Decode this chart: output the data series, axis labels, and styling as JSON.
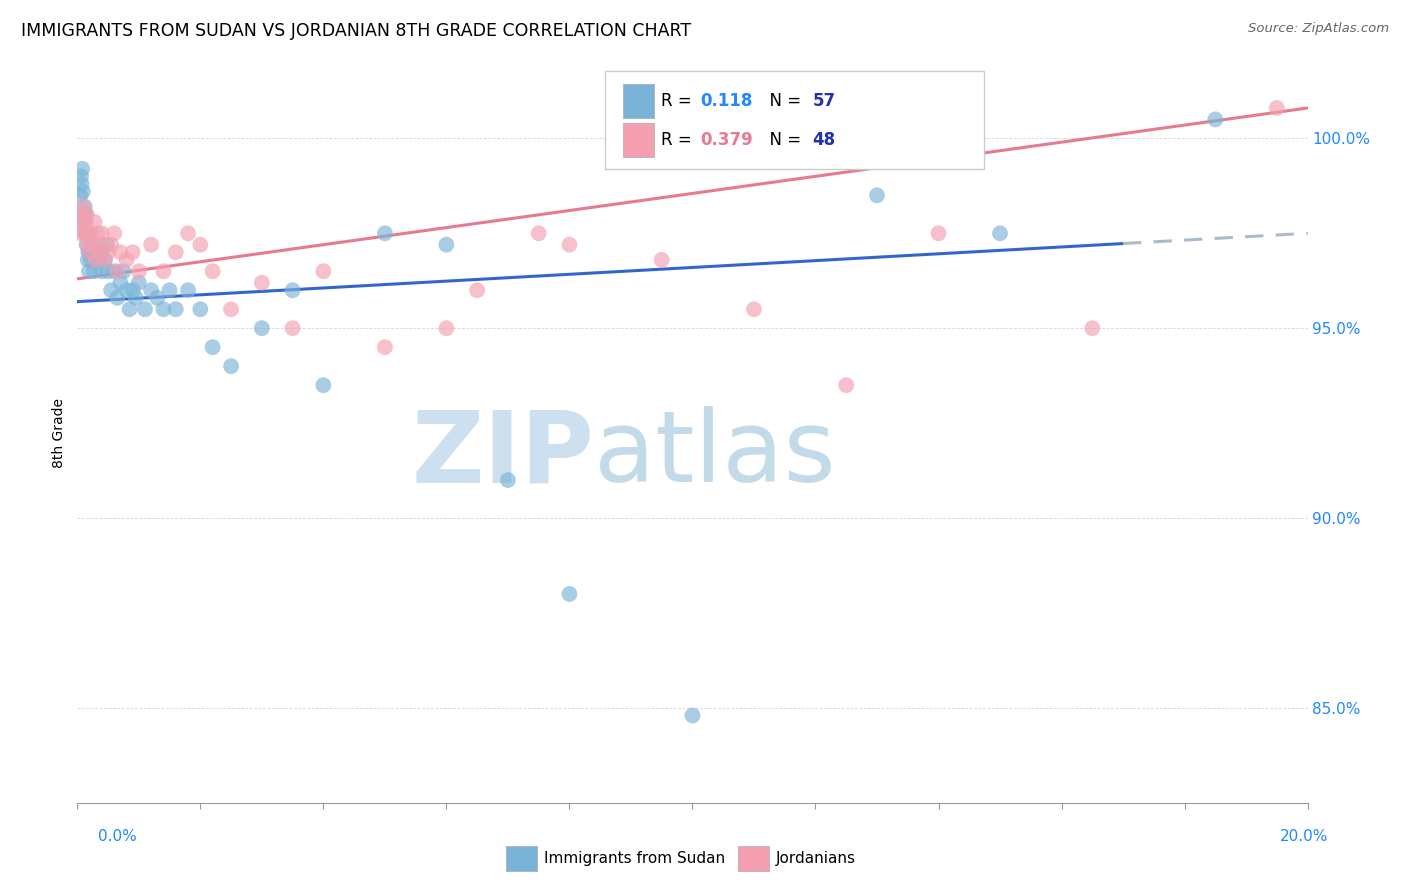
{
  "title": "IMMIGRANTS FROM SUDAN VS JORDANIAN 8TH GRADE CORRELATION CHART",
  "source": "Source: ZipAtlas.com",
  "ylabel": "8th Grade",
  "y_ticks": [
    85.0,
    90.0,
    95.0,
    100.0
  ],
  "y_tick_labels": [
    "85.0%",
    "90.0%",
    "95.0%",
    "100.0%"
  ],
  "xlim": [
    0.0,
    20.0
  ],
  "ylim": [
    82.5,
    102.0
  ],
  "series1_label": "Immigrants from Sudan",
  "series1_color": "#7ab3d8",
  "series1_edge": "#5090bb",
  "series1_R": "0.118",
  "series1_N": "57",
  "series1_line_color": "#3366cc",
  "series1_dash_color": "#aabbcc",
  "series2_label": "Jordanians",
  "series2_color": "#f4a0b0",
  "series2_edge": "#d07090",
  "series2_R": "0.379",
  "series2_N": "48",
  "series2_line_color": "#e87a90",
  "legend_R_color": "#2288ff",
  "legend_N_color": "#2233aa",
  "background_color": "#ffffff",
  "series1_x": [
    0.05,
    0.06,
    0.07,
    0.08,
    0.09,
    0.1,
    0.11,
    0.12,
    0.13,
    0.14,
    0.15,
    0.16,
    0.17,
    0.18,
    0.19,
    0.2,
    0.22,
    0.25,
    0.27,
    0.3,
    0.35,
    0.38,
    0.4,
    0.45,
    0.48,
    0.5,
    0.55,
    0.6,
    0.65,
    0.7,
    0.75,
    0.8,
    0.85,
    0.9,
    0.95,
    1.0,
    1.1,
    1.2,
    1.3,
    1.4,
    1.5,
    1.6,
    1.8,
    2.0,
    2.2,
    2.5,
    3.0,
    3.5,
    4.0,
    5.0,
    6.0,
    7.0,
    8.0,
    10.0,
    13.0,
    15.0,
    18.5
  ],
  "series1_y": [
    98.5,
    99.0,
    98.8,
    99.2,
    98.6,
    98.0,
    97.8,
    98.2,
    97.5,
    98.0,
    97.2,
    97.5,
    96.8,
    97.0,
    96.5,
    97.0,
    96.8,
    97.2,
    96.5,
    97.0,
    96.8,
    97.0,
    96.5,
    96.8,
    97.2,
    96.5,
    96.0,
    96.5,
    95.8,
    96.2,
    96.5,
    96.0,
    95.5,
    96.0,
    95.8,
    96.2,
    95.5,
    96.0,
    95.8,
    95.5,
    96.0,
    95.5,
    96.0,
    95.5,
    94.5,
    94.0,
    95.0,
    96.0,
    93.5,
    97.5,
    97.2,
    91.0,
    88.0,
    84.8,
    98.5,
    97.5,
    100.5
  ],
  "series2_x": [
    0.05,
    0.07,
    0.08,
    0.1,
    0.12,
    0.14,
    0.15,
    0.17,
    0.18,
    0.2,
    0.22,
    0.25,
    0.28,
    0.3,
    0.33,
    0.35,
    0.38,
    0.4,
    0.45,
    0.5,
    0.55,
    0.6,
    0.65,
    0.7,
    0.8,
    0.9,
    1.0,
    1.2,
    1.4,
    1.6,
    1.8,
    2.0,
    2.2,
    2.5,
    3.0,
    3.5,
    4.0,
    5.0,
    6.0,
    6.5,
    7.5,
    8.0,
    9.5,
    11.0,
    12.5,
    14.0,
    16.5,
    19.5
  ],
  "series2_y": [
    97.5,
    98.0,
    97.8,
    98.2,
    97.5,
    97.8,
    98.0,
    97.2,
    97.5,
    97.0,
    97.5,
    97.2,
    97.8,
    96.8,
    97.5,
    97.0,
    97.2,
    97.5,
    96.8,
    97.0,
    97.2,
    97.5,
    96.5,
    97.0,
    96.8,
    97.0,
    96.5,
    97.2,
    96.5,
    97.0,
    97.5,
    97.2,
    96.5,
    95.5,
    96.2,
    95.0,
    96.5,
    94.5,
    95.0,
    96.0,
    97.5,
    97.2,
    96.8,
    95.5,
    93.5,
    97.5,
    95.0,
    100.8
  ]
}
